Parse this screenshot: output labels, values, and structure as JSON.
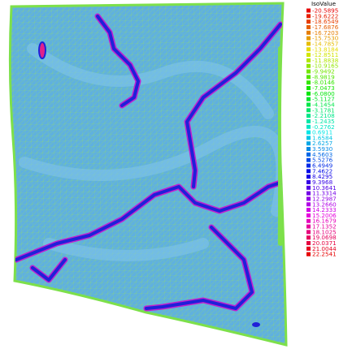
{
  "legend": {
    "title": "IsoValue",
    "labels": [
      "-20.5895",
      "-19.6222",
      "-18.6549",
      "-17.6876",
      "-16.7203",
      "-15.7530",
      "-14.7857",
      "-13.8184",
      "-12.8511",
      "-11.8838",
      "-10.9165",
      "-9.9492",
      "-8.9819",
      "-8.0146",
      "-7.0473",
      "-6.0800",
      "-5.1127",
      "-4.1454",
      "-3.1781",
      "-2.2108",
      "-1.2435",
      "-0.2762",
      "0.6911",
      "1.6584",
      "2.6257",
      "3.5930",
      "4.5603",
      "5.5276",
      "6.4949",
      "7.4622",
      "8.4295",
      "9.3968",
      "10.3641",
      "11.3314",
      "12.2987",
      "13.2660",
      "14.2333",
      "15.2006",
      "16.1679",
      "17.1352",
      "18.1025",
      "19.0698",
      "20.0371",
      "21.0044",
      "22.2541"
    ]
  }
}
